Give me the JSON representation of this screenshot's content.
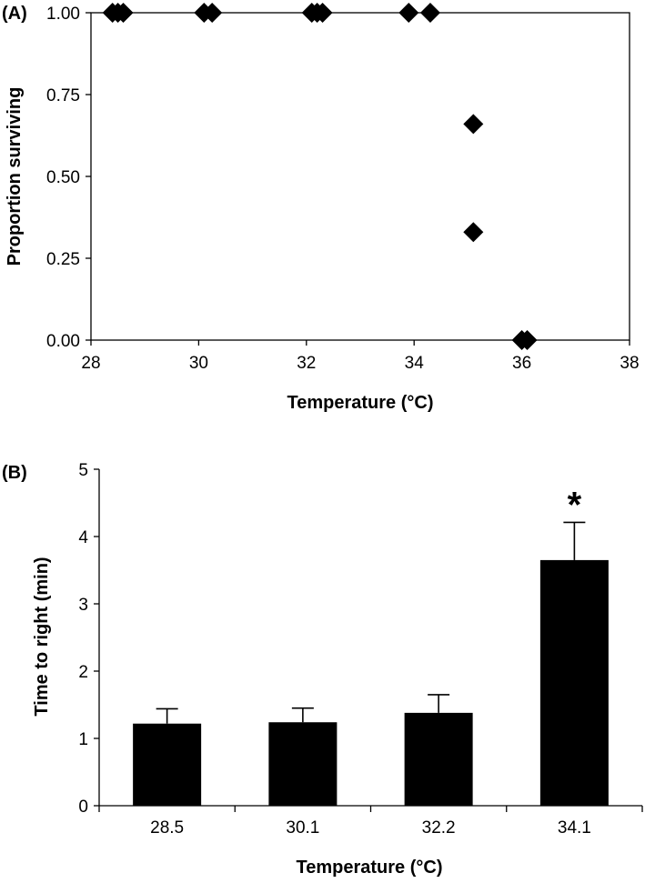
{
  "chart_data": [
    {
      "panel_label": "(A)",
      "type": "scatter",
      "xlabel": "Temperature (°C)",
      "ylabel": "Proportion surviving",
      "xlim": [
        28,
        38
      ],
      "ylim": [
        0,
        1
      ],
      "xticks": [
        28,
        30,
        32,
        34,
        36,
        38
      ],
      "xtick_labels": [
        "28",
        "30",
        "32",
        "34",
        "36",
        "38"
      ],
      "yticks": [
        0,
        0.25,
        0.5,
        0.75,
        1
      ],
      "ytick_labels": [
        "0.00",
        "0.25",
        "0.50",
        "0.75",
        "1.00"
      ],
      "marker": "diamond",
      "grid": false,
      "points": [
        {
          "x": 28.4,
          "y": 1.0
        },
        {
          "x": 28.5,
          "y": 1.0
        },
        {
          "x": 28.6,
          "y": 1.0
        },
        {
          "x": 30.1,
          "y": 1.0
        },
        {
          "x": 30.25,
          "y": 1.0
        },
        {
          "x": 32.1,
          "y": 1.0
        },
        {
          "x": 32.2,
          "y": 1.0
        },
        {
          "x": 32.3,
          "y": 1.0
        },
        {
          "x": 33.9,
          "y": 1.0
        },
        {
          "x": 34.3,
          "y": 1.0
        },
        {
          "x": 35.1,
          "y": 0.66
        },
        {
          "x": 35.1,
          "y": 0.33
        },
        {
          "x": 36.0,
          "y": 0.0
        },
        {
          "x": 36.1,
          "y": 0.0
        }
      ]
    },
    {
      "panel_label": "(B)",
      "type": "bar",
      "xlabel": "Temperature (°C)",
      "ylabel": "Time to right (min)",
      "categories": [
        "28.5",
        "30.1",
        "32.2",
        "34.1"
      ],
      "values": [
        1.22,
        1.24,
        1.38,
        3.65
      ],
      "error_upper": [
        0.22,
        0.21,
        0.27,
        0.56
      ],
      "ylim": [
        0,
        5
      ],
      "yticks": [
        0,
        1,
        2,
        3,
        4,
        5
      ],
      "ytick_labels": [
        "0",
        "1",
        "2",
        "3",
        "4",
        "5"
      ],
      "annotations": [
        {
          "category": "34.1",
          "text": "*"
        }
      ],
      "bar_color": "#000000",
      "grid": false
    }
  ]
}
